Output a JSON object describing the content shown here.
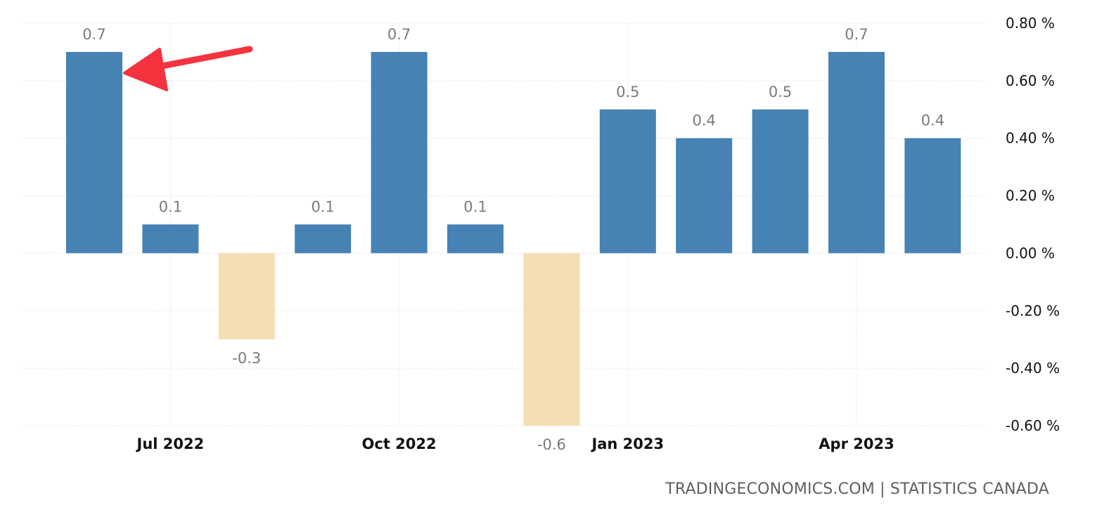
{
  "chart_data": {
    "type": "bar",
    "categories": [
      "Jun 2022",
      "Jul 2022",
      "Aug 2022",
      "Sep 2022",
      "Oct 2022",
      "Nov 2022",
      "Dec 2022",
      "Jan 2023",
      "Feb 2023",
      "Mar 2023",
      "Apr 2023",
      "May 2023"
    ],
    "values": [
      0.7,
      0.1,
      -0.3,
      0.1,
      0.7,
      0.1,
      -0.6,
      0.5,
      0.4,
      0.5,
      0.7,
      0.4
    ],
    "data_labels": [
      "0.7",
      "0.1",
      "-0.3",
      "0.1",
      "0.7",
      "0.1",
      "-0.6",
      "0.5",
      "0.4",
      "0.5",
      "0.7",
      "0.4"
    ],
    "x_tick_labels": [
      "Jul 2022",
      "Oct 2022",
      "Jan 2023",
      "Apr 2023"
    ],
    "y_ticks": [
      0.8,
      0.6,
      0.4,
      0.2,
      0.0,
      -0.2,
      -0.4,
      -0.6
    ],
    "y_tick_labels": [
      "0.80 %",
      "0.60 %",
      "0.40 %",
      "0.20 %",
      "0.00 %",
      "-0.20 %",
      "-0.40 %",
      "-0.60 %"
    ],
    "ylim": [
      -0.6,
      0.8
    ],
    "y_axis_side": "right",
    "grid": true,
    "colors": {
      "positive": "#4682b4",
      "negative": "#f5deb3",
      "gridline": "#d9d9d9",
      "annotation_arrow": "#f5333f"
    },
    "annotations": [
      {
        "type": "arrow",
        "points_to": "Jun 2022",
        "color": "#f5333f"
      }
    ]
  },
  "source": {
    "text": "TRADINGECONOMICS.COM | STATISTICS CANADA"
  }
}
